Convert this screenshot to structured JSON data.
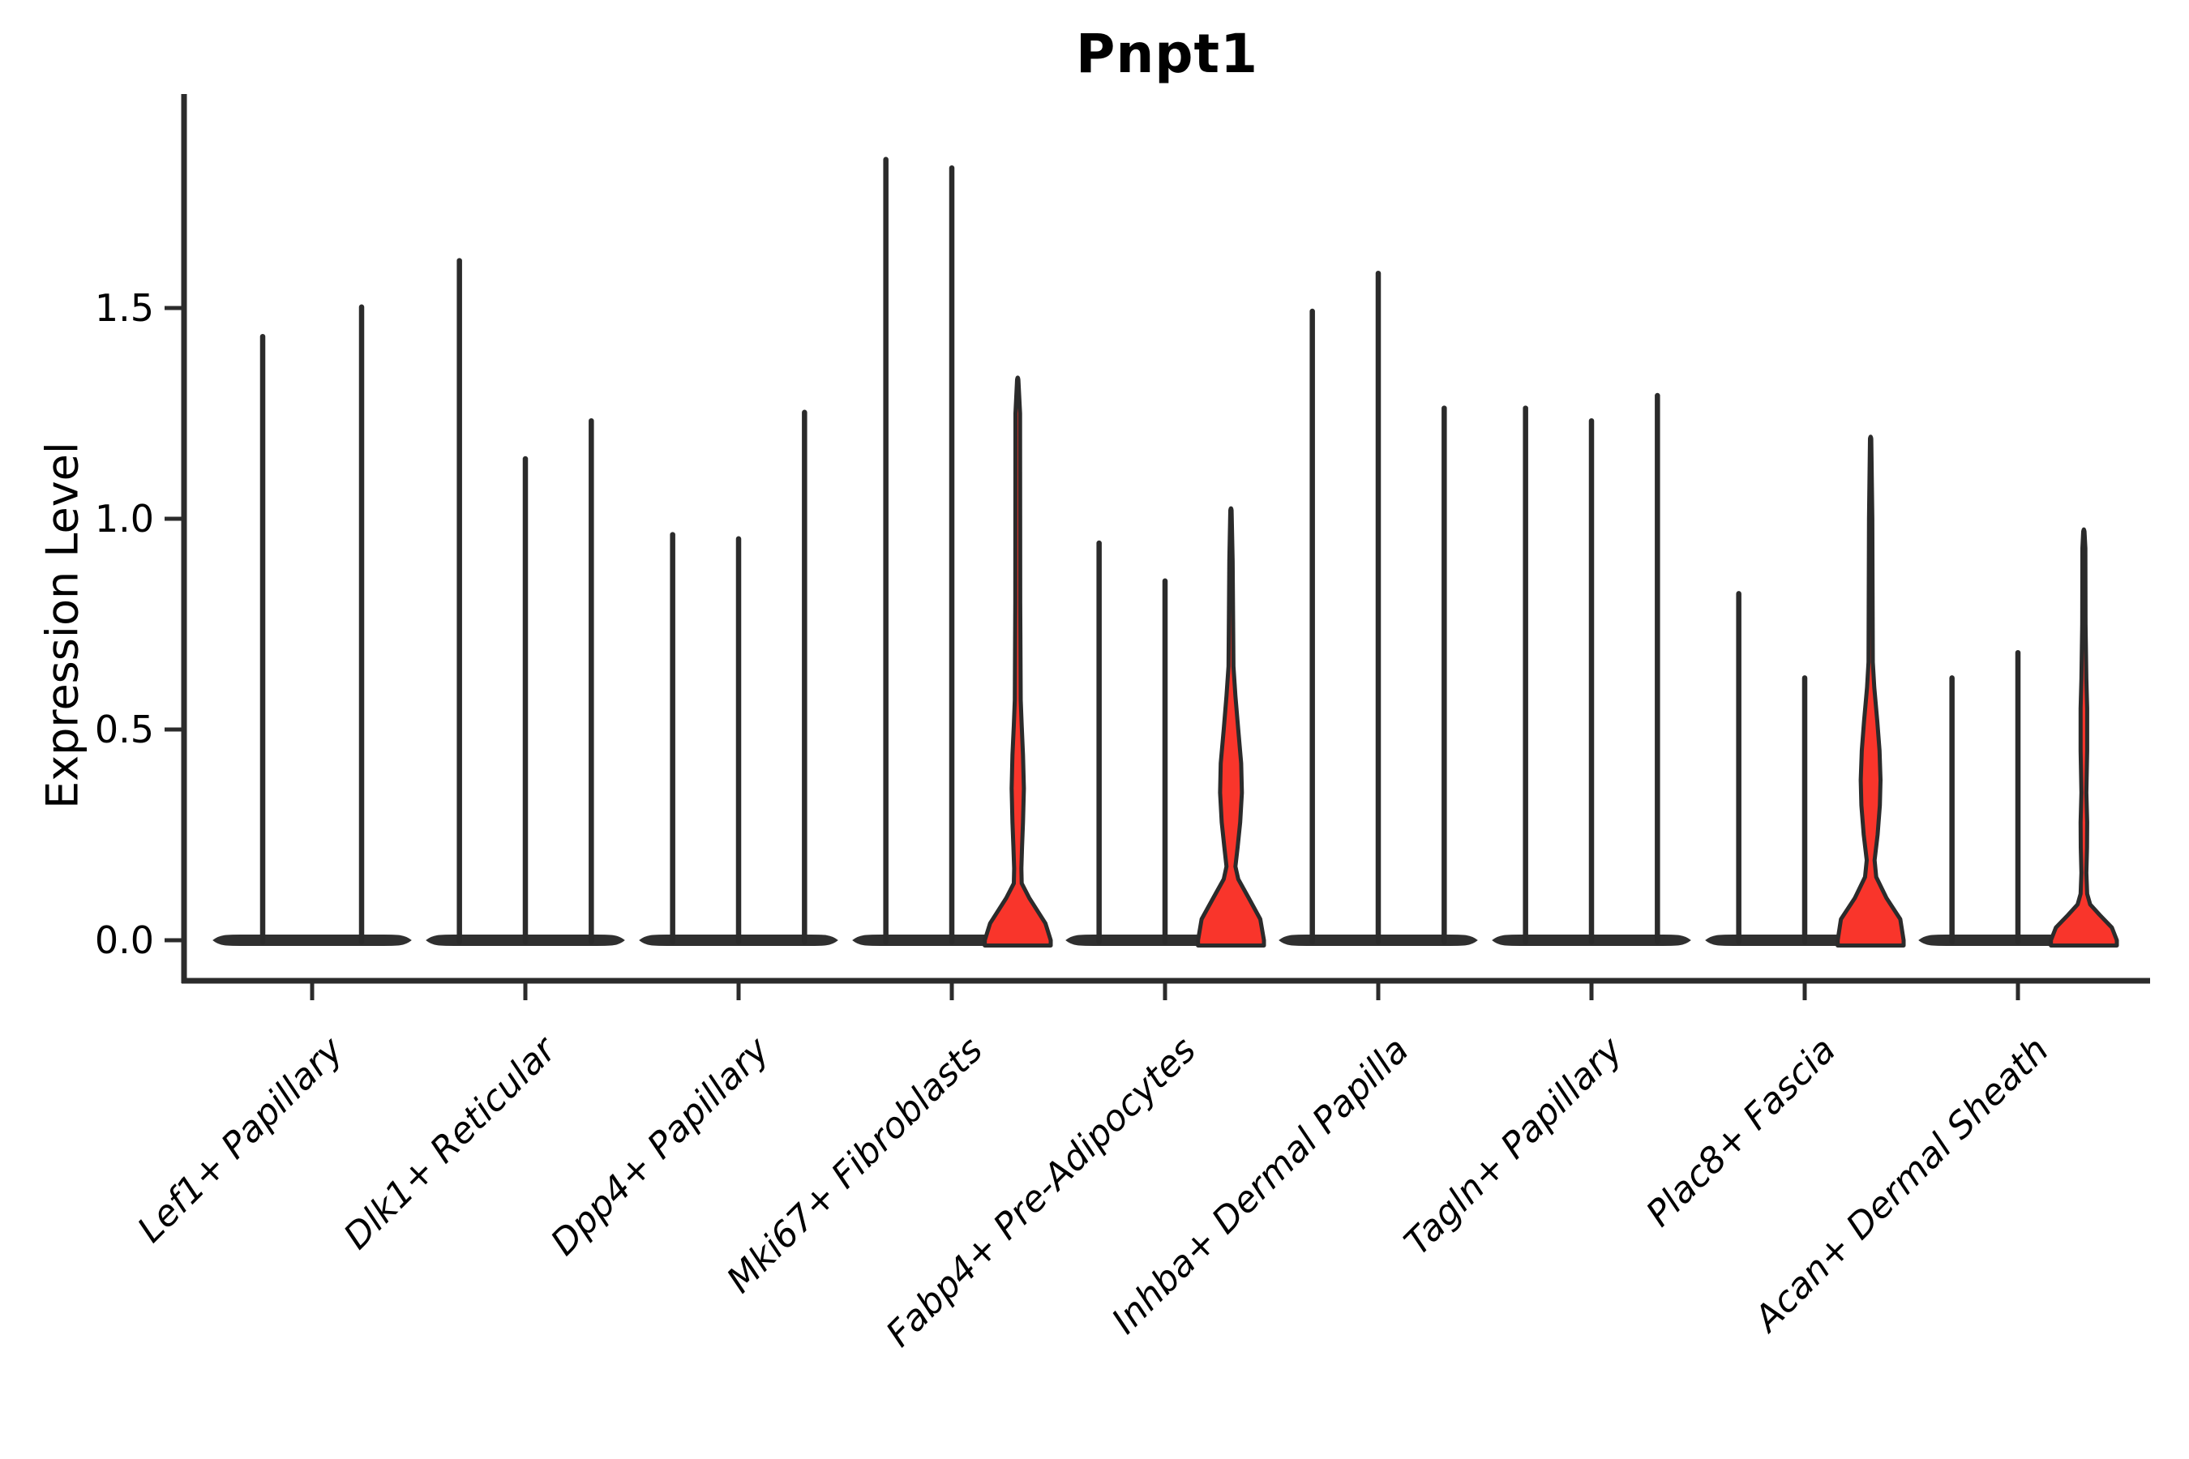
{
  "title": "Pnpt1",
  "y_axis": {
    "label": "Expression Level",
    "tick_labels": [
      "0.0",
      "0.5",
      "1.0",
      "1.5"
    ]
  },
  "chart_data": {
    "type": "violin",
    "title": "Pnpt1",
    "xlabel": "",
    "ylabel": "Expression Level",
    "ylim": [
      -0.09,
      2.0
    ],
    "yticks": [
      0.0,
      0.5,
      1.0,
      1.5
    ],
    "grid": false,
    "legend": "none",
    "fill_color": "#f9352b",
    "line_color": "#2b2b2b",
    "background_color": "#ffffff",
    "description": "Each group shows violins of Pnpt1 expression; most violins collapse to a flat base at 0 with a thin spike to the max value. 'max' is the top of each violin; 'profile' (value, relative-width pairs) describes violins with visible red density bulges.",
    "groups": [
      {
        "label": "Lef1+ Papillary",
        "violins": [
          {
            "max": 1.44,
            "shape": "thin-spike"
          },
          {
            "max": 1.51,
            "shape": "thin-spike"
          }
        ]
      },
      {
        "label": "Dlk1+ Reticular",
        "violins": [
          {
            "max": 1.62,
            "shape": "thin-spike"
          },
          {
            "max": 1.15,
            "shape": "thin-spike"
          },
          {
            "max": 1.24,
            "shape": "thin-spike"
          }
        ]
      },
      {
        "label": "Dpp4+ Papillary",
        "violins": [
          {
            "max": 0.97,
            "shape": "thin-spike"
          },
          {
            "max": 0.96,
            "shape": "thin-spike"
          },
          {
            "max": 1.26,
            "shape": "thin-spike"
          }
        ]
      },
      {
        "label": "Mki67+ Fibroblasts",
        "violins": [
          {
            "max": 1.86,
            "shape": "thin-spike"
          },
          {
            "max": 1.84,
            "shape": "thin-spike"
          },
          {
            "max": 1.33,
            "shape": "bulged",
            "profile": [
              [
                0,
                1
              ],
              [
                0.04,
                0.84
              ],
              [
                0.1,
                0.35
              ],
              [
                0.135,
                0.12
              ],
              [
                0.17,
                0.11
              ],
              [
                0.22,
                0.13
              ],
              [
                0.28,
                0.16
              ],
              [
                0.36,
                0.185
              ],
              [
                0.44,
                0.16
              ],
              [
                0.51,
                0.12
              ],
              [
                0.57,
                0.09
              ],
              [
                0.8,
                0.075
              ],
              [
                1.25,
                0.07
              ],
              [
                1.33,
                0.02
              ]
            ]
          }
        ]
      },
      {
        "label": "Fabp4+ Pre-Adipocytes",
        "violins": [
          {
            "max": 0.95,
            "shape": "thin-spike"
          },
          {
            "max": 0.86,
            "shape": "thin-spike"
          },
          {
            "max": 1.02,
            "shape": "bulged",
            "profile": [
              [
                0,
                1
              ],
              [
                0.05,
                0.89
              ],
              [
                0.1,
                0.54
              ],
              [
                0.145,
                0.22
              ],
              [
                0.175,
                0.135
              ],
              [
                0.22,
                0.2
              ],
              [
                0.28,
                0.28
              ],
              [
                0.35,
                0.33
              ],
              [
                0.42,
                0.31
              ],
              [
                0.5,
                0.22
              ],
              [
                0.58,
                0.135
              ],
              [
                0.65,
                0.075
              ],
              [
                0.9,
                0.05
              ],
              [
                1.02,
                0.02
              ]
            ]
          }
        ]
      },
      {
        "label": "Inhba+ Dermal Papilla",
        "violins": [
          {
            "max": 1.5,
            "shape": "thin-spike"
          },
          {
            "max": 1.59,
            "shape": "thin-spike"
          },
          {
            "max": 1.27,
            "shape": "thin-spike"
          }
        ]
      },
      {
        "label": "Tagln+ Papillary",
        "violins": [
          {
            "max": 1.27,
            "shape": "thin-spike"
          },
          {
            "max": 1.24,
            "shape": "thin-spike"
          },
          {
            "max": 1.3,
            "shape": "thin-spike"
          }
        ]
      },
      {
        "label": "Plac8+ Fascia",
        "violins": [
          {
            "max": 0.83,
            "shape": "thin-spike"
          },
          {
            "max": 0.63,
            "shape": "thin-spike"
          },
          {
            "max": 1.19,
            "shape": "bulged",
            "profile": [
              [
                0,
                1
              ],
              [
                0.05,
                0.9
              ],
              [
                0.1,
                0.48
              ],
              [
                0.15,
                0.17
              ],
              [
                0.19,
                0.12
              ],
              [
                0.25,
                0.21
              ],
              [
                0.32,
                0.28
              ],
              [
                0.38,
                0.3
              ],
              [
                0.45,
                0.27
              ],
              [
                0.52,
                0.2
              ],
              [
                0.6,
                0.11
              ],
              [
                0.66,
                0.065
              ],
              [
                1.0,
                0.05
              ],
              [
                1.19,
                0.02
              ]
            ]
          }
        ]
      },
      {
        "label": "Acan+ Dermal Sheath",
        "violins": [
          {
            "max": 0.63,
            "shape": "thin-spike"
          },
          {
            "max": 0.69,
            "shape": "thin-spike"
          },
          {
            "max": 0.97,
            "shape": "bulged",
            "profile": [
              [
                0,
                1
              ],
              [
                0.03,
                0.85
              ],
              [
                0.06,
                0.48
              ],
              [
                0.085,
                0.19
              ],
              [
                0.11,
                0.1
              ],
              [
                0.16,
                0.075
              ],
              [
                0.22,
                0.095
              ],
              [
                0.28,
                0.1
              ],
              [
                0.35,
                0.075
              ],
              [
                0.45,
                0.1
              ],
              [
                0.55,
                0.1
              ],
              [
                0.62,
                0.075
              ],
              [
                0.75,
                0.05
              ],
              [
                0.93,
                0.045
              ],
              [
                0.97,
                0.02
              ]
            ]
          }
        ]
      }
    ]
  }
}
